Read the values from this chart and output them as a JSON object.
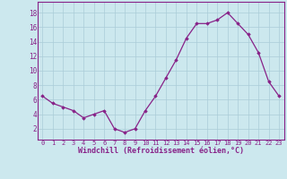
{
  "x": [
    0,
    1,
    2,
    3,
    4,
    5,
    6,
    7,
    8,
    9,
    10,
    11,
    12,
    13,
    14,
    15,
    16,
    17,
    18,
    19,
    20,
    21,
    22,
    23
  ],
  "y": [
    6.5,
    5.5,
    5.0,
    4.5,
    3.5,
    4.0,
    4.5,
    2.0,
    1.5,
    2.0,
    4.5,
    6.5,
    9.0,
    11.5,
    14.5,
    16.5,
    16.5,
    17.0,
    18.0,
    16.5,
    15.0,
    12.5,
    8.5,
    6.5
  ],
  "line_color": "#882288",
  "marker": "D",
  "marker_size": 1.8,
  "linewidth": 0.9,
  "background_color": "#cce8ee",
  "grid_color": "#aaccd8",
  "tick_color": "#882288",
  "label_color": "#882288",
  "xlabel": "Windchill (Refroidissement éolien,°C)",
  "xlabel_fontsize": 6.0,
  "ylabel_ticks": [
    2,
    4,
    6,
    8,
    10,
    12,
    14,
    16,
    18
  ],
  "xtick_labels": [
    "0",
    "1",
    "2",
    "3",
    "4",
    "5",
    "6",
    "7",
    "8",
    "9",
    "10",
    "11",
    "12",
    "13",
    "14",
    "15",
    "16",
    "17",
    "18",
    "19",
    "20",
    "21",
    "22",
    "23"
  ],
  "ytick_fontsize": 5.5,
  "xtick_fontsize": 5.0,
  "ylim": [
    0.5,
    19.5
  ],
  "xlim": [
    -0.5,
    23.5
  ],
  "border_color": "#882288"
}
